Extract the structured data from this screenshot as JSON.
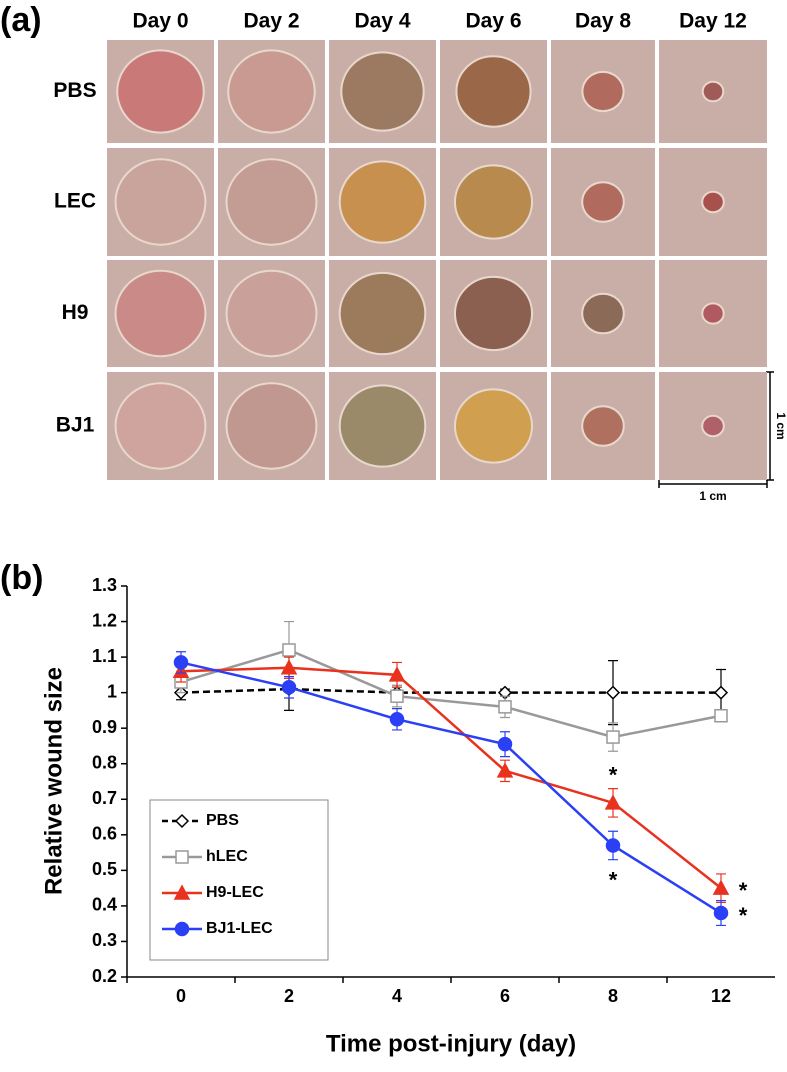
{
  "panel_a": {
    "label": "(a)",
    "columns": [
      "Day 0",
      "Day 2",
      "Day 4",
      "Day 6",
      "Day 8",
      "Day 12"
    ],
    "rows": [
      "PBS",
      "LEC",
      "H9",
      "BJ1"
    ],
    "scale_bar": {
      "vertical": "1 cm",
      "horizontal": "1 cm"
    }
  },
  "chart_data": {
    "type": "line",
    "panel_label": "(b)",
    "x_label": "Time post-injury (day)",
    "y_label": "Relative wound size",
    "categories": [
      "0",
      "2",
      "4",
      "6",
      "8",
      "12"
    ],
    "ylim": [
      0.2,
      1.3
    ],
    "yticks": [
      0.2,
      0.3,
      0.4,
      0.5,
      0.6,
      0.7,
      0.8,
      0.9,
      1,
      1.1,
      1.2,
      1.3
    ],
    "legend": "lower-left",
    "series": [
      {
        "name": "PBS",
        "color": "#000000",
        "marker": "diamond",
        "dashed": true,
        "values": [
          1.0,
          1.01,
          1.0,
          1.0,
          1.0,
          1.0
        ],
        "errors": [
          0.02,
          0.06,
          0.02,
          0.01,
          0.09,
          0.065
        ]
      },
      {
        "name": "hLEC",
        "color": "#999999",
        "marker": "square",
        "dashed": false,
        "values": [
          1.03,
          1.12,
          0.99,
          0.96,
          0.875,
          0.935
        ],
        "errors": [
          0.03,
          0.08,
          0.03,
          0.03,
          0.04,
          0.01
        ]
      },
      {
        "name": "H9-LEC",
        "color": "#e8321e",
        "marker": "triangle",
        "dashed": false,
        "values": [
          1.06,
          1.07,
          1.05,
          0.78,
          0.69,
          0.45
        ],
        "errors": [
          0.03,
          0.03,
          0.035,
          0.03,
          0.04,
          0.04
        ]
      },
      {
        "name": "BJ1-LEC",
        "color": "#2b3ff5",
        "marker": "circle",
        "dashed": false,
        "values": [
          1.085,
          1.015,
          0.925,
          0.855,
          0.57,
          0.38
        ],
        "errors": [
          0.03,
          0.03,
          0.03,
          0.035,
          0.04,
          0.035
        ]
      }
    ],
    "annotations": [
      "*",
      "*",
      "*",
      "*"
    ]
  }
}
